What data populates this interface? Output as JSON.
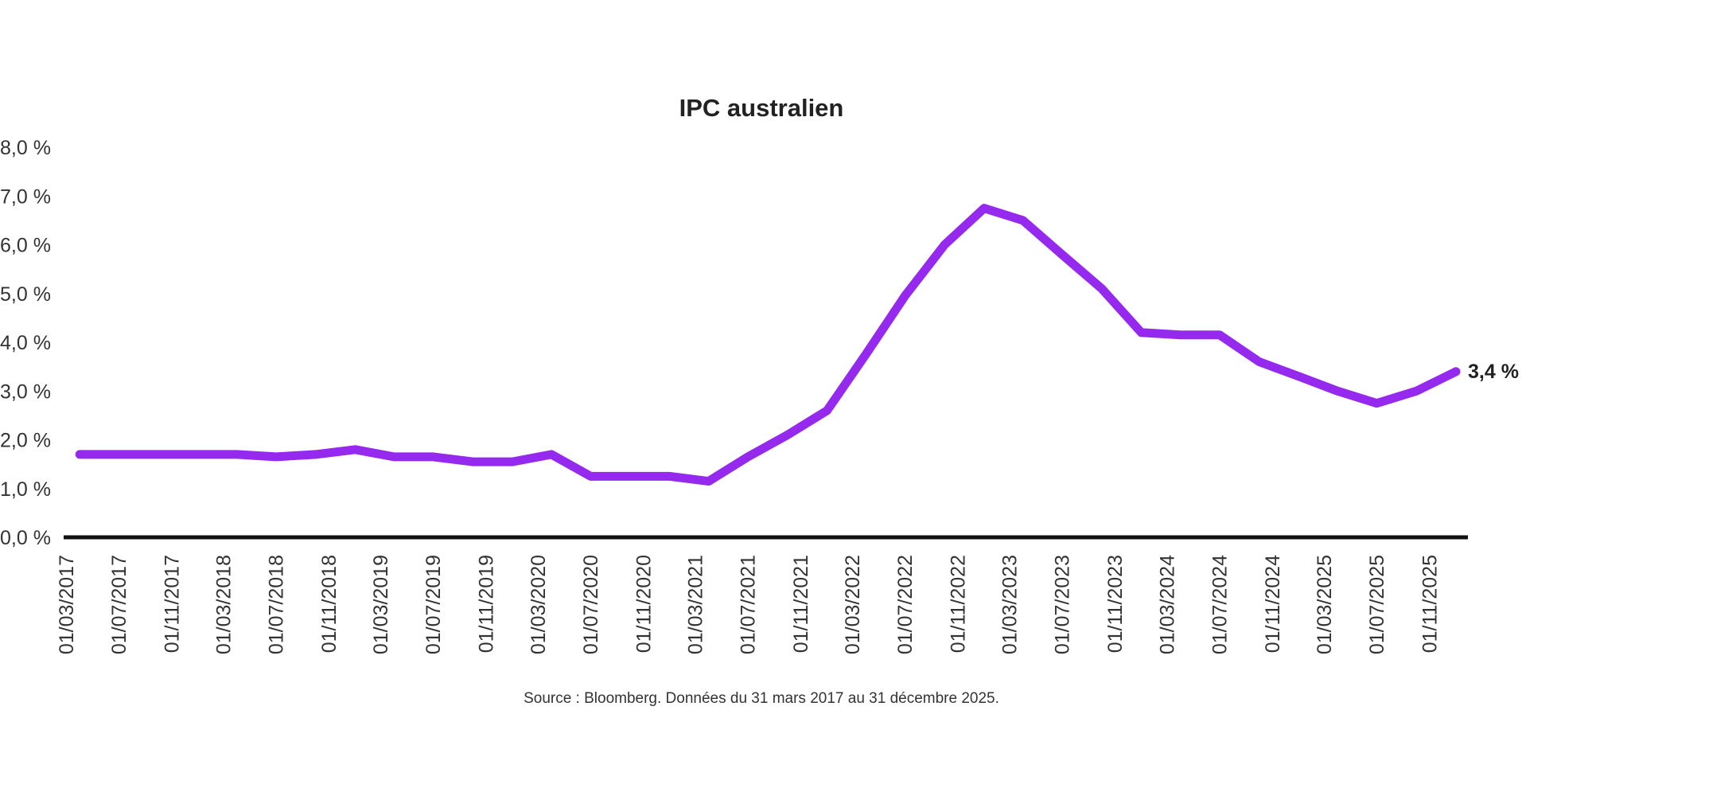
{
  "chart_data": {
    "type": "line",
    "title": "IPC australien",
    "source": "Source : Bloomberg. Données du 31 mars 2017 au 31 décembre 2025.",
    "y_ticks": [
      "0,0 %",
      "1,0 %",
      "2,0 %",
      "3,0 %",
      "4,0 %",
      "5,0 %",
      "6,0 %",
      "7,0 %",
      "8,0 %"
    ],
    "ylim": [
      0,
      8
    ],
    "x_ticks": [
      "01/03/2017",
      "01/07/2017",
      "01/11/2017",
      "01/03/2018",
      "01/07/2018",
      "01/11/2018",
      "01/03/2019",
      "01/07/2019",
      "01/11/2019",
      "01/03/2020",
      "01/07/2020",
      "01/11/2020",
      "01/03/2021",
      "01/07/2021",
      "01/11/2021",
      "01/03/2022",
      "01/07/2022",
      "01/11/2022",
      "01/03/2023",
      "01/07/2023",
      "01/11/2023",
      "01/03/2024",
      "01/07/2024",
      "01/11/2024",
      "01/03/2025",
      "01/07/2025",
      "01/11/2025"
    ],
    "xlim": [
      "2017-03-01",
      "2025-12-31"
    ],
    "grid": false,
    "line_color": "#9629ee",
    "end_label": "3,4 %",
    "series": [
      {
        "x": [
          "2017-03-31",
          "2017-06-30",
          "2017-09-30",
          "2017-12-31",
          "2018-03-31",
          "2018-06-30",
          "2018-09-30",
          "2018-12-31",
          "2019-03-31",
          "2019-06-30",
          "2019-09-30",
          "2019-12-31",
          "2020-03-31",
          "2020-06-30",
          "2020-09-30",
          "2020-12-31",
          "2021-03-31",
          "2021-06-30",
          "2021-09-30",
          "2021-12-31",
          "2022-03-31",
          "2022-06-30",
          "2022-09-30",
          "2022-12-31",
          "2023-03-31",
          "2023-06-30",
          "2023-09-30",
          "2023-12-31",
          "2024-03-31",
          "2024-06-30",
          "2024-09-30",
          "2024-12-31",
          "2025-03-31",
          "2025-06-30",
          "2025-09-30",
          "2025-12-31"
        ],
        "values": [
          1.7,
          1.7,
          1.7,
          1.7,
          1.7,
          1.65,
          1.7,
          1.8,
          1.65,
          1.65,
          1.55,
          1.55,
          1.7,
          1.25,
          1.25,
          1.25,
          1.15,
          1.65,
          2.1,
          2.6,
          3.75,
          4.95,
          6.0,
          6.75,
          6.5,
          5.8,
          5.1,
          4.2,
          4.15,
          4.15,
          3.6,
          3.3,
          3.0,
          2.75,
          3.0,
          3.4
        ]
      }
    ]
  }
}
